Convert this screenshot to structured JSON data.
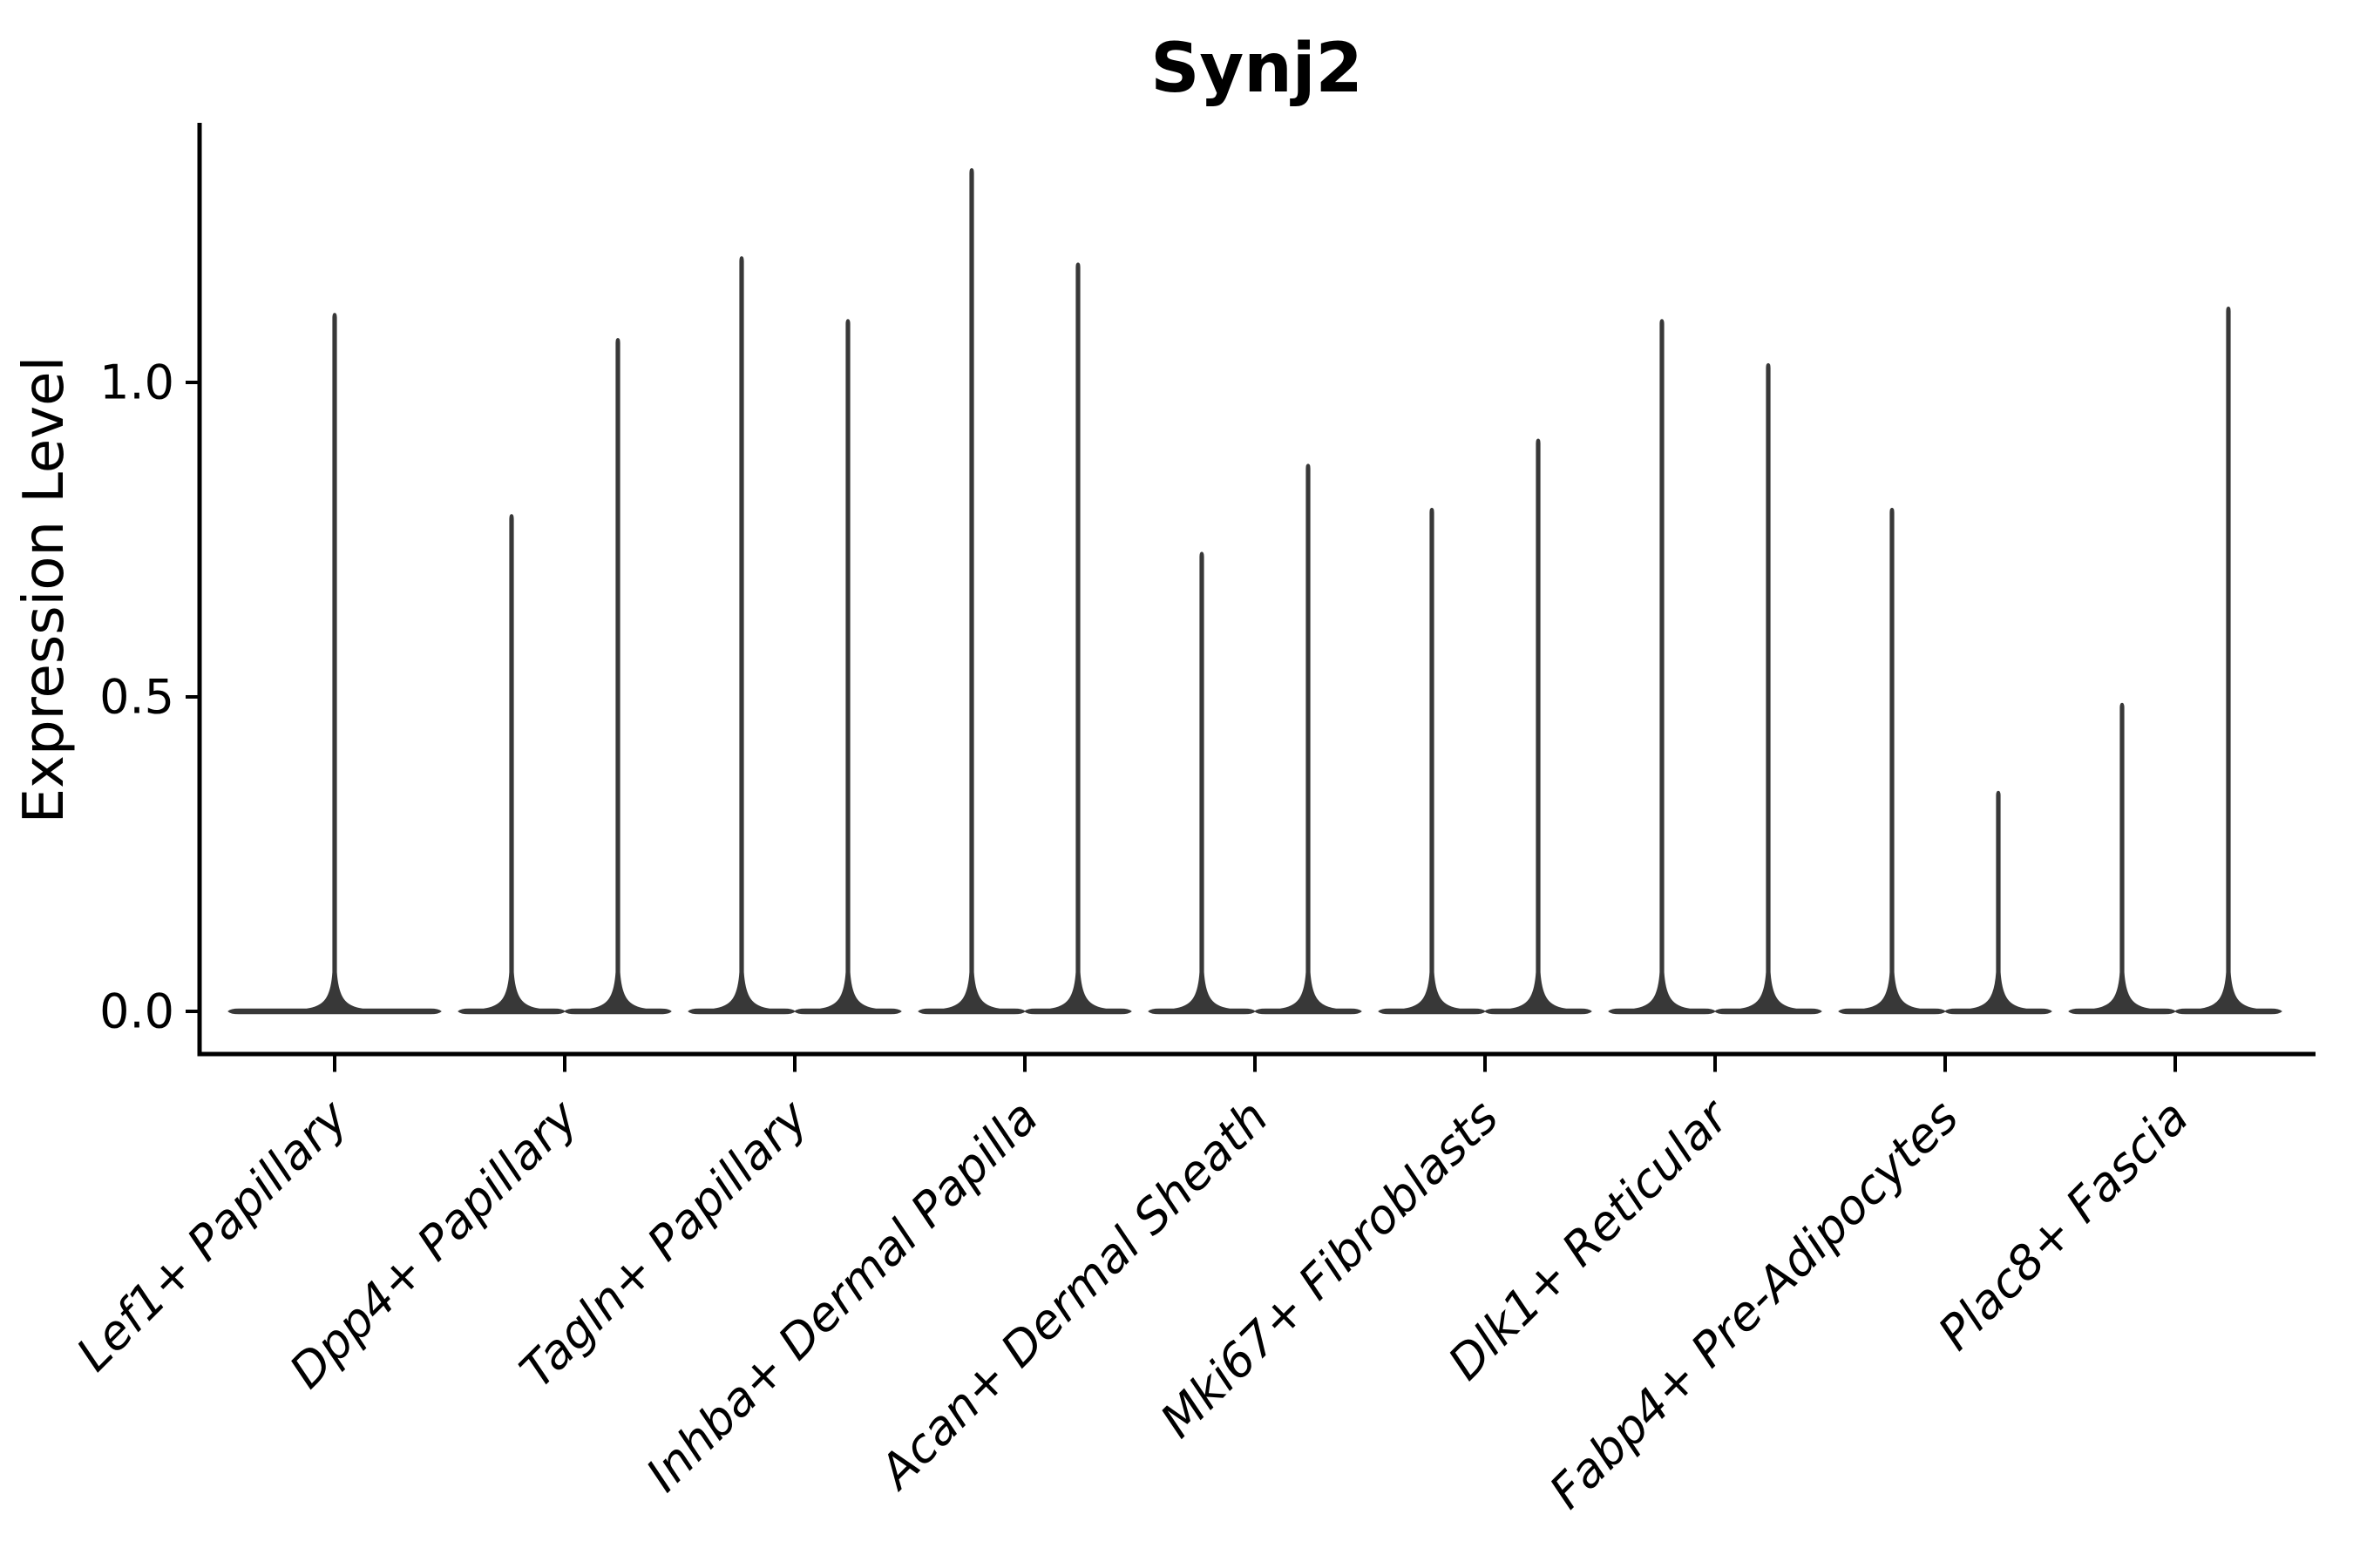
{
  "figure": {
    "background_color": "#ffffff",
    "axis_color": "#000000",
    "violin_color": "#383838",
    "text_color": "#000000"
  },
  "chart_data": {
    "type": "violin",
    "title": "Synj2",
    "xlabel": "",
    "ylabel": "Expression Level",
    "ylim": [
      -0.07,
      1.41
    ],
    "grid": false,
    "legend_position": "none",
    "yticks": [
      {
        "value": 0.0,
        "label": "0.0"
      },
      {
        "value": 0.5,
        "label": "0.5"
      },
      {
        "value": 1.0,
        "label": "1.0"
      }
    ],
    "categories": [
      "Lef1+ Papillary",
      "Dpp4+ Papillary",
      "Tagln+ Papillary",
      "Inhba+ Dermal Papilla",
      "Acan+ Dermal Sheath",
      "Mki67+ Fibroblasts",
      "Dlk1+ Reticular",
      "Fabp4+ Pre-Adipocytes",
      "Plac8+ Fascia"
    ],
    "distribution_shape": "density concentrated at 0 with a thin vertical tail up to the max expression value",
    "violins": [
      {
        "category": "Lef1+ Papillary",
        "groups": [
          {
            "max": 1.11
          }
        ]
      },
      {
        "category": "Dpp4+ Papillary",
        "groups": [
          {
            "max": 0.79
          },
          {
            "max": 1.07
          }
        ]
      },
      {
        "category": "Tagln+ Papillary",
        "groups": [
          {
            "max": 1.2
          },
          {
            "max": 1.1
          }
        ]
      },
      {
        "category": "Inhba+ Dermal Papilla",
        "groups": [
          {
            "max": 1.34
          },
          {
            "max": 1.19
          }
        ]
      },
      {
        "category": "Acan+ Dermal Sheath",
        "groups": [
          {
            "max": 0.73
          },
          {
            "max": 0.87
          }
        ]
      },
      {
        "category": "Mki67+ Fibroblasts",
        "groups": [
          {
            "max": 0.8
          },
          {
            "max": 0.91
          }
        ]
      },
      {
        "category": "Dlk1+ Reticular",
        "groups": [
          {
            "max": 1.1
          },
          {
            "max": 1.03
          }
        ]
      },
      {
        "category": "Fabp4+ Pre-Adipocytes",
        "groups": [
          {
            "max": 0.8
          },
          {
            "max": 0.35
          }
        ]
      },
      {
        "category": "Plac8+ Fascia",
        "groups": [
          {
            "max": 0.49
          },
          {
            "max": 1.12
          }
        ]
      }
    ]
  }
}
